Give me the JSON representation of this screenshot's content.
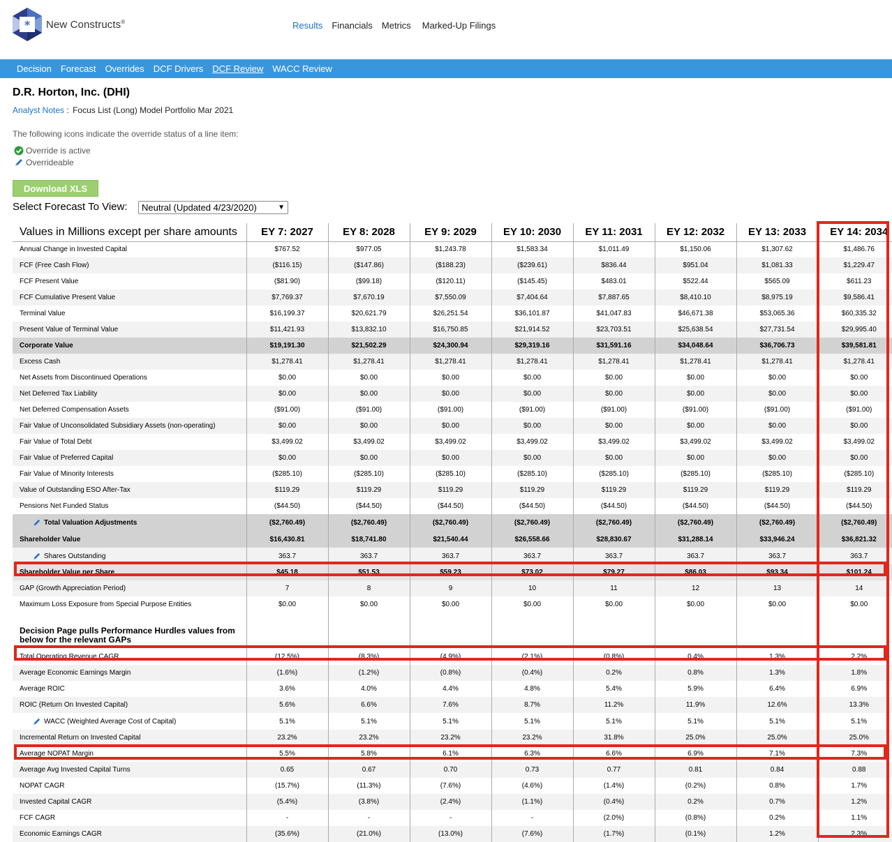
{
  "brand": {
    "name": "New Constructs",
    "mark": "®"
  },
  "top_nav": [
    "Results",
    "Financials",
    "Metrics",
    "Marked-Up Filings"
  ],
  "sub_nav": [
    "Decision",
    "Forecast",
    "Overrides",
    "DCF Drivers",
    "DCF Review",
    "WACC Review"
  ],
  "company": "D.R. Horton, Inc. (DHI)",
  "notes": {
    "link": "Analyst Notes",
    "sep": ":",
    "text": "Focus List (Long) Model Portfolio Mar 2021"
  },
  "legend": {
    "intro": "The following icons indicate the override status of a line item:",
    "active": "Override is active",
    "overrideable": "Overrideable"
  },
  "download_label": "Download XLS",
  "forecast": {
    "label": "Select Forecast To View:",
    "selected": "Neutral (Updated 4/23/2020)"
  },
  "colors": {
    "accent": "#3a96dc",
    "link": "#1a73c8",
    "highlight": "#e0271c",
    "button": "#9bcf6f"
  },
  "table": {
    "header_label": "Values in Millions except per share amounts",
    "columns": [
      "EY 7: 2027",
      "EY 8: 2028",
      "EY 9: 2029",
      "EY 10: 2030",
      "EY 11: 2031",
      "EY 12: 2032",
      "EY 13: 2033",
      "EY 14: 2034"
    ],
    "rows": [
      {
        "label": "Annual Change in Invested Capital",
        "values": [
          "$767.52",
          "$977.05",
          "$1,243.78",
          "$1,583.34",
          "$1,011.49",
          "$1,150.06",
          "$1,307.62",
          "$1,486.76"
        ]
      },
      {
        "label": "FCF (Free Cash Flow)",
        "values": [
          "($116.15)",
          "($147.86)",
          "($188.23)",
          "($239.61)",
          "$836.44",
          "$951.04",
          "$1,081.33",
          "$1,229.47"
        ]
      },
      {
        "label": "FCF Present Value",
        "values": [
          "($81.90)",
          "($99.18)",
          "($120.11)",
          "($145.45)",
          "$483.01",
          "$522.44",
          "$565.09",
          "$611.23"
        ]
      },
      {
        "label": "FCF Cumulative Present Value",
        "values": [
          "$7,769.37",
          "$7,670.19",
          "$7,550.09",
          "$7,404.64",
          "$7,887.65",
          "$8,410.10",
          "$8,975.19",
          "$9,586.41"
        ]
      },
      {
        "label": "Terminal Value",
        "values": [
          "$16,199.37",
          "$20,621.79",
          "$26,251.54",
          "$36,101.87",
          "$41,047.83",
          "$46,671.38",
          "$53,065.36",
          "$60,335.32"
        ]
      },
      {
        "label": "Present Value of Terminal Value",
        "values": [
          "$11,421.93",
          "$13,832.10",
          "$16,750.85",
          "$21,914.52",
          "$23,703.51",
          "$25,638.54",
          "$27,731.54",
          "$29,995.40"
        ]
      },
      {
        "label": "Corporate Value",
        "bold": true,
        "values": [
          "$19,191.30",
          "$21,502.29",
          "$24,300.94",
          "$29,319.16",
          "$31,591.16",
          "$34,048.64",
          "$36,706.73",
          "$39,581.81"
        ]
      },
      {
        "label": "Excess Cash",
        "values": [
          "$1,278.41",
          "$1,278.41",
          "$1,278.41",
          "$1,278.41",
          "$1,278.41",
          "$1,278.41",
          "$1,278.41",
          "$1,278.41"
        ]
      },
      {
        "label": "Net Assets from Discontinued Operations",
        "values": [
          "$0.00",
          "$0.00",
          "$0.00",
          "$0.00",
          "$0.00",
          "$0.00",
          "$0.00",
          "$0.00"
        ]
      },
      {
        "label": "Net Deferred Tax Liability",
        "values": [
          "$0.00",
          "$0.00",
          "$0.00",
          "$0.00",
          "$0.00",
          "$0.00",
          "$0.00",
          "$0.00"
        ]
      },
      {
        "label": "Net Deferred Compensation Assets",
        "values": [
          "($91.00)",
          "($91.00)",
          "($91.00)",
          "($91.00)",
          "($91.00)",
          "($91.00)",
          "($91.00)",
          "($91.00)"
        ]
      },
      {
        "label": "Fair Value of Unconsolidated Subsidiary Assets (non-operating)",
        "values": [
          "$0.00",
          "$0.00",
          "$0.00",
          "$0.00",
          "$0.00",
          "$0.00",
          "$0.00",
          "$0.00"
        ]
      },
      {
        "label": "Fair Value of Total Debt",
        "values": [
          "$3,499.02",
          "$3,499.02",
          "$3,499.02",
          "$3,499.02",
          "$3,499.02",
          "$3,499.02",
          "$3,499.02",
          "$3,499.02"
        ]
      },
      {
        "label": "Fair Value of Preferred Capital",
        "values": [
          "$0.00",
          "$0.00",
          "$0.00",
          "$0.00",
          "$0.00",
          "$0.00",
          "$0.00",
          "$0.00"
        ]
      },
      {
        "label": "Fair Value of Minority Interests",
        "values": [
          "($285.10)",
          "($285.10)",
          "($285.10)",
          "($285.10)",
          "($285.10)",
          "($285.10)",
          "($285.10)",
          "($285.10)"
        ]
      },
      {
        "label": "Value of Outstanding ESO After-Tax",
        "values": [
          "$119.29",
          "$119.29",
          "$119.29",
          "$119.29",
          "$119.29",
          "$119.29",
          "$119.29",
          "$119.29"
        ]
      },
      {
        "label": "Pensions Net Funded Status",
        "values": [
          "($44.50)",
          "($44.50)",
          "($44.50)",
          "($44.50)",
          "($44.50)",
          "($44.50)",
          "($44.50)",
          "($44.50)"
        ]
      },
      {
        "label": "Total Valuation Adjustments",
        "bold": true,
        "pen": true,
        "values": [
          "($2,760.49)",
          "($2,760.49)",
          "($2,760.49)",
          "($2,760.49)",
          "($2,760.49)",
          "($2,760.49)",
          "($2,760.49)",
          "($2,760.49)"
        ]
      },
      {
        "label": "Shareholder Value",
        "bold": true,
        "values": [
          "$16,430.81",
          "$18,741.80",
          "$21,540.44",
          "$26,558.66",
          "$28,830.67",
          "$31,288.14",
          "$33,946.24",
          "$36,821.32"
        ]
      },
      {
        "label": "Shares Outstanding",
        "pen": true,
        "values": [
          "363.7",
          "363.7",
          "363.7",
          "363.7",
          "363.7",
          "363.7",
          "363.7",
          "363.7"
        ]
      },
      {
        "label": "Shareholder Value per Share",
        "bold": true,
        "light": true,
        "values": [
          "$45.18",
          "$51.53",
          "$59.23",
          "$73.02",
          "$79.27",
          "$86.03",
          "$93.34",
          "$101.24"
        ]
      },
      {
        "label": "GAP (Growth Appreciation Period)",
        "values": [
          "7",
          "8",
          "9",
          "10",
          "11",
          "12",
          "13",
          "14"
        ]
      },
      {
        "label": "Maximum Loss Exposure from Special Purpose Entities",
        "values": [
          "$0.00",
          "$0.00",
          "$0.00",
          "$0.00",
          "$0.00",
          "$0.00",
          "$0.00",
          "$0.00"
        ]
      },
      {
        "label": "Decision Page pulls Performance Hurdles values from below for the relevant GAPs",
        "section": true,
        "values": [
          "",
          "",
          "",
          "",
          "",
          "",
          "",
          ""
        ]
      },
      {
        "label": "Total Operating Revenue CAGR",
        "values": [
          "(12.5%)",
          "(8.3%)",
          "(4.9%)",
          "(2.1%)",
          "(0.8%)",
          "0.4%",
          "1.3%",
          "2.2%"
        ]
      },
      {
        "label": "Average Economic Earnings Margin",
        "values": [
          "(1.6%)",
          "(1.2%)",
          "(0.8%)",
          "(0.4%)",
          "0.2%",
          "0.8%",
          "1.3%",
          "1.8%"
        ]
      },
      {
        "label": "Average ROIC",
        "values": [
          "3.6%",
          "4.0%",
          "4.4%",
          "4.8%",
          "5.4%",
          "5.9%",
          "6.4%",
          "6.9%"
        ]
      },
      {
        "label": "ROIC (Return On Invested Capital)",
        "values": [
          "5.6%",
          "6.6%",
          "7.6%",
          "8.7%",
          "11.2%",
          "11.9%",
          "12.6%",
          "13.3%"
        ]
      },
      {
        "label": "WACC (Weighted Average Cost of Capital)",
        "pen": true,
        "values": [
          "5.1%",
          "5.1%",
          "5.1%",
          "5.1%",
          "5.1%",
          "5.1%",
          "5.1%",
          "5.1%"
        ]
      },
      {
        "label": "Incremental Return on Invested Capital",
        "values": [
          "23.2%",
          "23.2%",
          "23.2%",
          "23.2%",
          "31.8%",
          "25.0%",
          "25.0%",
          "25.0%"
        ]
      },
      {
        "label": "Average NOPAT Margin",
        "values": [
          "5.5%",
          "5.8%",
          "6.1%",
          "6.3%",
          "6.6%",
          "6.9%",
          "7.1%",
          "7.3%"
        ]
      },
      {
        "label": "Average Avg Invested Capital Turns",
        "values": [
          "0.65",
          "0.67",
          "0.70",
          "0.73",
          "0.77",
          "0.81",
          "0.84",
          "0.88"
        ]
      },
      {
        "label": "NOPAT CAGR",
        "values": [
          "(15.7%)",
          "(11.3%)",
          "(7.6%)",
          "(4.6%)",
          "(1.4%)",
          "(0.2%)",
          "0.8%",
          "1.7%"
        ]
      },
      {
        "label": "Invested Capital CAGR",
        "values": [
          "(5.4%)",
          "(3.8%)",
          "(2.4%)",
          "(1.1%)",
          "(0.4%)",
          "0.2%",
          "0.7%",
          "1.2%"
        ]
      },
      {
        "label": "FCF CAGR",
        "values": [
          "-",
          "-",
          "-",
          "-",
          "(2.0%)",
          "(0.8%)",
          "0.2%",
          "1.1%"
        ]
      },
      {
        "label": "Economic Earnings CAGR",
        "values": [
          "(35.6%)",
          "(21.0%)",
          "(13.0%)",
          "(7.6%)",
          "(1.7%)",
          "(0.1%)",
          "1.2%",
          "2.3%"
        ]
      }
    ]
  }
}
